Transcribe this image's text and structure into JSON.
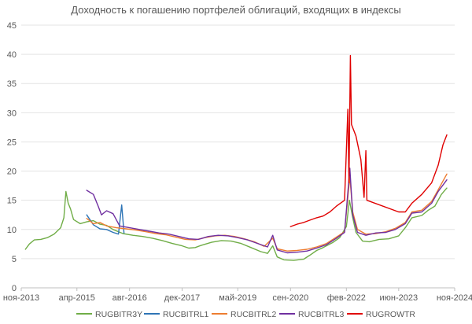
{
  "chart_data": {
    "type": "line",
    "title": "Доходность к погашению портфелей облигаций, входящих в индексы",
    "xlabel": "",
    "ylabel": "",
    "ylim": [
      0,
      45
    ],
    "yticks": [
      0,
      5,
      10,
      15,
      20,
      25,
      30,
      35,
      40,
      45
    ],
    "xlim": [
      "2013-11-01",
      "2024-11-01"
    ],
    "xticks": [
      {
        "date": "2013-11-01",
        "label": "ноя-2013"
      },
      {
        "date": "2015-04-01",
        "label": "апр-2015"
      },
      {
        "date": "2016-08-01",
        "label": "авг-2016"
      },
      {
        "date": "2017-12-01",
        "label": "дек-2017"
      },
      {
        "date": "2019-05-01",
        "label": "май-2019"
      },
      {
        "date": "2020-09-01",
        "label": "сен-2020"
      },
      {
        "date": "2022-02-01",
        "label": "фев-2022"
      },
      {
        "date": "2023-06-01",
        "label": "июн-2023"
      },
      {
        "date": "2024-11-01",
        "label": "ноя-2024"
      }
    ],
    "grid": true,
    "legend_position": "bottom",
    "series": [
      {
        "name": "RUGBITR3Y",
        "color": "#70ad47",
        "points": [
          [
            "2013-12-10",
            6.6
          ],
          [
            "2014-01-15",
            7.5
          ],
          [
            "2014-03-01",
            8.2
          ],
          [
            "2014-05-01",
            8.3
          ],
          [
            "2014-07-01",
            8.6
          ],
          [
            "2014-09-01",
            9.2
          ],
          [
            "2014-11-01",
            10.3
          ],
          [
            "2014-12-01",
            12.0
          ],
          [
            "2014-12-20",
            16.5
          ],
          [
            "2015-01-10",
            14.5
          ],
          [
            "2015-02-01",
            13.5
          ],
          [
            "2015-03-01",
            11.7
          ],
          [
            "2015-05-01",
            11.0
          ],
          [
            "2015-07-01",
            11.3
          ],
          [
            "2015-09-01",
            11.5
          ],
          [
            "2015-11-01",
            10.9
          ],
          [
            "2016-01-01",
            10.7
          ],
          [
            "2016-03-01",
            10.0
          ],
          [
            "2016-06-01",
            9.3
          ],
          [
            "2016-09-01",
            9.0
          ],
          [
            "2016-12-01",
            8.8
          ],
          [
            "2017-03-01",
            8.5
          ],
          [
            "2017-06-01",
            8.1
          ],
          [
            "2017-09-01",
            7.6
          ],
          [
            "2017-12-01",
            7.2
          ],
          [
            "2018-02-01",
            6.8
          ],
          [
            "2018-04-01",
            6.9
          ],
          [
            "2018-06-01",
            7.3
          ],
          [
            "2018-09-01",
            7.8
          ],
          [
            "2018-12-01",
            8.1
          ],
          [
            "2019-03-01",
            8.0
          ],
          [
            "2019-06-01",
            7.6
          ],
          [
            "2019-09-01",
            6.9
          ],
          [
            "2019-12-01",
            6.2
          ],
          [
            "2020-02-01",
            5.9
          ],
          [
            "2020-03-20",
            7.2
          ],
          [
            "2020-05-01",
            5.3
          ],
          [
            "2020-07-01",
            4.8
          ],
          [
            "2020-10-01",
            4.7
          ],
          [
            "2021-01-01",
            4.9
          ],
          [
            "2021-03-01",
            5.6
          ],
          [
            "2021-05-01",
            6.4
          ],
          [
            "2021-07-01",
            6.9
          ],
          [
            "2021-10-01",
            7.8
          ],
          [
            "2021-12-01",
            8.6
          ],
          [
            "2022-02-01",
            10.5
          ],
          [
            "2022-03-01",
            15.0
          ],
          [
            "2022-04-01",
            12.0
          ],
          [
            "2022-05-01",
            9.5
          ],
          [
            "2022-07-01",
            8.0
          ],
          [
            "2022-09-01",
            7.9
          ],
          [
            "2022-12-01",
            8.3
          ],
          [
            "2023-03-01",
            8.4
          ],
          [
            "2023-06-01",
            8.9
          ],
          [
            "2023-08-01",
            10.3
          ],
          [
            "2023-10-01",
            12.0
          ],
          [
            "2024-01-01",
            12.4
          ],
          [
            "2024-03-01",
            13.3
          ],
          [
            "2024-05-01",
            14.0
          ],
          [
            "2024-07-01",
            16.0
          ],
          [
            "2024-08-20",
            17.1
          ]
        ]
      },
      {
        "name": "RUCBITRL1",
        "color": "#2e75b6",
        "points": [
          [
            "2015-07-01",
            12.5
          ],
          [
            "2015-09-01",
            10.8
          ],
          [
            "2015-11-01",
            10.1
          ],
          [
            "2016-01-01",
            10.0
          ],
          [
            "2016-03-01",
            9.5
          ],
          [
            "2016-04-20",
            9.2
          ],
          [
            "2016-05-20",
            14.2
          ],
          [
            "2016-06-10",
            9.4
          ]
        ]
      },
      {
        "name": "RUCBITRL2",
        "color": "#ed7d31",
        "points": [
          [
            "2015-07-01",
            11.9
          ],
          [
            "2015-09-01",
            11.0
          ],
          [
            "2015-11-01",
            11.2
          ],
          [
            "2016-01-01",
            10.6
          ],
          [
            "2016-04-01",
            10.3
          ],
          [
            "2016-07-01",
            10.1
          ],
          [
            "2016-10-01",
            9.9
          ],
          [
            "2017-01-01",
            9.6
          ],
          [
            "2017-04-01",
            9.3
          ],
          [
            "2017-07-01",
            9.1
          ],
          [
            "2017-10-01",
            8.7
          ],
          [
            "2018-01-01",
            8.3
          ],
          [
            "2018-04-01",
            8.2
          ],
          [
            "2018-07-01",
            8.6
          ],
          [
            "2018-10-01",
            8.9
          ],
          [
            "2019-01-01",
            9.0
          ],
          [
            "2019-04-01",
            8.8
          ],
          [
            "2019-07-01",
            8.4
          ],
          [
            "2019-10-01",
            7.9
          ],
          [
            "2020-01-01",
            7.1
          ],
          [
            "2020-03-20",
            8.5
          ],
          [
            "2020-05-01",
            6.7
          ],
          [
            "2020-08-01",
            6.3
          ],
          [
            "2020-11-01",
            6.4
          ],
          [
            "2021-02-01",
            6.6
          ],
          [
            "2021-05-01",
            7.0
          ],
          [
            "2021-08-01",
            7.6
          ],
          [
            "2021-11-01",
            8.7
          ],
          [
            "2022-01-15",
            9.6
          ],
          [
            "2022-03-05",
            19.0
          ],
          [
            "2022-04-01",
            13.0
          ],
          [
            "2022-05-15",
            10.0
          ],
          [
            "2022-08-01",
            9.2
          ],
          [
            "2022-11-01",
            9.3
          ],
          [
            "2023-02-01",
            9.6
          ],
          [
            "2023-05-01",
            10.2
          ],
          [
            "2023-08-01",
            11.2
          ],
          [
            "2023-10-01",
            13.0
          ],
          [
            "2024-01-01",
            13.3
          ],
          [
            "2024-04-01",
            14.8
          ],
          [
            "2024-06-01",
            16.8
          ],
          [
            "2024-08-20",
            19.5
          ]
        ]
      },
      {
        "name": "RUCBITRL3",
        "color": "#7030a0",
        "points": [
          [
            "2015-07-01",
            16.7
          ],
          [
            "2015-09-01",
            16.0
          ],
          [
            "2015-10-15",
            14.0
          ],
          [
            "2015-11-15",
            12.5
          ],
          [
            "2016-01-01",
            13.2
          ],
          [
            "2016-03-01",
            12.7
          ],
          [
            "2016-05-01",
            10.6
          ],
          [
            "2016-08-01",
            10.3
          ],
          [
            "2016-11-01",
            10.0
          ],
          [
            "2017-02-01",
            9.7
          ],
          [
            "2017-05-01",
            9.4
          ],
          [
            "2017-08-01",
            9.2
          ],
          [
            "2017-11-01",
            8.8
          ],
          [
            "2018-02-01",
            8.4
          ],
          [
            "2018-05-01",
            8.3
          ],
          [
            "2018-08-01",
            8.8
          ],
          [
            "2018-11-01",
            9.0
          ],
          [
            "2019-02-01",
            8.9
          ],
          [
            "2019-05-01",
            8.6
          ],
          [
            "2019-08-01",
            8.2
          ],
          [
            "2019-11-01",
            7.6
          ],
          [
            "2020-02-01",
            7.0
          ],
          [
            "2020-03-20",
            9.0
          ],
          [
            "2020-05-01",
            6.5
          ],
          [
            "2020-08-01",
            6.0
          ],
          [
            "2020-11-01",
            6.1
          ],
          [
            "2021-02-01",
            6.3
          ],
          [
            "2021-05-01",
            6.8
          ],
          [
            "2021-08-01",
            7.4
          ],
          [
            "2021-11-01",
            8.5
          ],
          [
            "2022-01-15",
            9.5
          ],
          [
            "2022-03-05",
            20.5
          ],
          [
            "2022-04-01",
            12.5
          ],
          [
            "2022-05-15",
            9.5
          ],
          [
            "2022-08-01",
            9.0
          ],
          [
            "2022-11-01",
            9.4
          ],
          [
            "2023-02-01",
            9.5
          ],
          [
            "2023-05-01",
            10.0
          ],
          [
            "2023-08-01",
            11.0
          ],
          [
            "2023-10-01",
            12.8
          ],
          [
            "2024-01-01",
            13.0
          ],
          [
            "2024-04-01",
            14.5
          ],
          [
            "2024-06-01",
            16.5
          ],
          [
            "2024-08-20",
            18.5
          ]
        ]
      },
      {
        "name": "RUGROWTR",
        "color": "#e00000",
        "points": [
          [
            "2020-09-01",
            10.5
          ],
          [
            "2020-11-01",
            10.9
          ],
          [
            "2021-01-01",
            11.2
          ],
          [
            "2021-03-01",
            11.6
          ],
          [
            "2021-05-01",
            12.0
          ],
          [
            "2021-07-01",
            12.3
          ],
          [
            "2021-09-01",
            13.0
          ],
          [
            "2021-11-01",
            14.0
          ],
          [
            "2022-01-15",
            15.0
          ],
          [
            "2022-02-15",
            30.6
          ],
          [
            "2022-02-25",
            18.0
          ],
          [
            "2022-03-10",
            39.8
          ],
          [
            "2022-03-20",
            28.0
          ],
          [
            "2022-05-01",
            26.0
          ],
          [
            "2022-06-15",
            22.0
          ],
          [
            "2022-07-15",
            15.5
          ],
          [
            "2022-08-01",
            23.5
          ],
          [
            "2022-08-10",
            15.0
          ],
          [
            "2023-06-01",
            13.0
          ],
          [
            "2023-08-01",
            13.0
          ],
          [
            "2023-10-01",
            14.5
          ],
          [
            "2024-01-01",
            16.0
          ],
          [
            "2024-04-01",
            18.0
          ],
          [
            "2024-06-01",
            21.0
          ],
          [
            "2024-07-15",
            24.5
          ],
          [
            "2024-08-20",
            26.2
          ]
        ]
      }
    ]
  }
}
